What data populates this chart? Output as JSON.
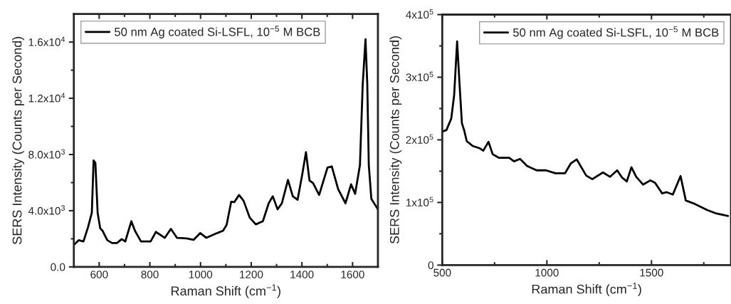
{
  "chart_data": [
    {
      "type": "line",
      "xlabel": "Raman Shift (cm$^{−1}$)",
      "ylabel": "SERS Intensity (Counts per Second)",
      "legend": "top left",
      "grid": false,
      "tick_labels": "xy",
      "xlim": [
        500,
        1700
      ],
      "ylim": [
        0,
        18000
      ],
      "xticks": [
        600,
        {
          "value": 700,
          "label": null
        },
        800,
        {
          "value": 900,
          "label": null
        },
        1000,
        {
          "value": 1100,
          "label": null
        },
        1200,
        {
          "value": 1300,
          "label": null
        },
        1400,
        {
          "value": 1500,
          "label": null
        },
        1600
      ],
      "yticks": [
        {
          "value": 0,
          "label": "0.0"
        },
        {
          "value": 2000,
          "label": null
        },
        {
          "value": 4000,
          "label": "4.0x10$^{3}$"
        },
        {
          "value": 6000,
          "label": null
        },
        {
          "value": 8000,
          "label": "8.0x10$^{3}$"
        },
        {
          "value": 10000,
          "label": null
        },
        {
          "value": 12000,
          "label": "1.2x10$^{4}$"
        },
        {
          "value": 14000,
          "label": null
        },
        {
          "value": 16000,
          "label": "1.6x10$^{4}$"
        }
      ],
      "series": [
        {
          "name": "50 nm Ag coated Si-LSFL, 10$^{−5}$ M BCB",
          "color": "#000000",
          "x": [
            500,
            519,
            538,
            556,
            571,
            578,
            585,
            594,
            604,
            613,
            632,
            651,
            670,
            689,
            703,
            727,
            741,
            765,
            803,
            824,
            859,
            883,
            907,
            945,
            973,
            999,
            1023,
            1066,
            1089,
            1103,
            1121,
            1133,
            1152,
            1170,
            1194,
            1218,
            1246,
            1269,
            1285,
            1304,
            1321,
            1345,
            1364,
            1383,
            1402,
            1416,
            1430,
            1444,
            1468,
            1501,
            1518,
            1543,
            1572,
            1594,
            1610,
            1629,
            1640,
            1651,
            1658,
            1664,
            1674,
            1700
          ],
          "values": [
            1560,
            1900,
            1810,
            2830,
            3850,
            7580,
            7400,
            3850,
            2750,
            2580,
            1900,
            1700,
            1700,
            1980,
            1810,
            3250,
            2580,
            1810,
            1810,
            2490,
            2070,
            2710,
            2070,
            2030,
            1930,
            2410,
            2070,
            2410,
            2580,
            3000,
            4640,
            4610,
            5120,
            4700,
            3510,
            3030,
            3250,
            4530,
            5030,
            4100,
            4530,
            6190,
            5030,
            4780,
            6640,
            8170,
            6140,
            5970,
            5120,
            7070,
            7150,
            5540,
            4530,
            5880,
            5200,
            7240,
            13000,
            16200,
            13000,
            7240,
            4850,
            4100
          ]
        }
      ]
    },
    {
      "type": "line",
      "xlabel": "Raman Shift (cm$^{−1}$)",
      "ylabel": "SERS Intensity (Counts per Second)",
      "legend": "top right",
      "grid": false,
      "tick_labels": "xy",
      "xlim": [
        500,
        1880
      ],
      "ylim": [
        0,
        400000
      ],
      "xticks": [
        500,
        {
          "value": 750,
          "label": null
        },
        1000,
        {
          "value": 1250,
          "label": null
        },
        1500,
        {
          "value": 1750,
          "label": null
        }
      ],
      "yticks": [
        0,
        {
          "value": 50000,
          "label": null
        },
        {
          "value": 100000,
          "label": "1x10$^{5}$"
        },
        {
          "value": 150000,
          "label": null
        },
        {
          "value": 200000,
          "label": "2x10$^{5}$"
        },
        {
          "value": 250000,
          "label": null
        },
        {
          "value": 300000,
          "label": "3x10$^{5}$"
        },
        {
          "value": 350000,
          "label": null
        },
        {
          "value": 400000,
          "label": "4x10$^{5}$"
        }
      ],
      "series": [
        {
          "name": "50 nm Ag coated Si-LSFL, 10$^{−5}$ M BCB",
          "color": "#000000",
          "x": [
            500,
            520,
            543,
            557,
            571,
            583,
            594,
            605,
            617,
            645,
            679,
            696,
            721,
            741,
            770,
            820,
            843,
            872,
            906,
            951,
            996,
            1041,
            1087,
            1115,
            1143,
            1188,
            1217,
            1268,
            1302,
            1336,
            1359,
            1382,
            1404,
            1427,
            1460,
            1494,
            1517,
            1551,
            1573,
            1602,
            1639,
            1664,
            1709,
            1766,
            1811,
            1866
          ],
          "values": [
            213000,
            215700,
            233900,
            271800,
            357100,
            287000,
            226300,
            215000,
            197900,
            190300,
            186500,
            182700,
            196800,
            177000,
            171400,
            171400,
            165700,
            169500,
            158100,
            151300,
            151300,
            146700,
            146700,
            162600,
            168700,
            142900,
            137200,
            147900,
            141000,
            151300,
            139900,
            133500,
            156200,
            141000,
            128500,
            135300,
            131500,
            114500,
            116400,
            112600,
            142200,
            103100,
            97400,
            88000,
            82300,
            78500
          ]
        }
      ]
    }
  ]
}
